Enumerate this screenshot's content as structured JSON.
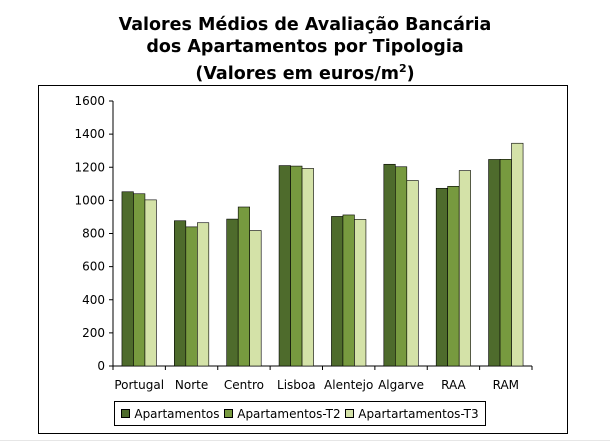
{
  "chart_data": {
    "type": "bar",
    "title_lines": [
      "Valores Médios de Avaliação Bancária",
      "dos Apartamentos por Tipologia",
      "(Valores em euros/m",
      "2",
      ")"
    ],
    "categories": [
      "Portugal",
      "Norte",
      "Centro",
      "Lisboa",
      "Alentejo",
      "Algarve",
      "RAA",
      "RAM"
    ],
    "series": [
      {
        "name": "Apartamentos",
        "color": "#4e6b2c",
        "values": [
          1052,
          877,
          887,
          1210,
          903,
          1218,
          1073,
          1247
        ]
      },
      {
        "name": "Apartamentos-T2",
        "color": "#779a3f",
        "values": [
          1040,
          840,
          960,
          1207,
          912,
          1203,
          1085,
          1248
        ]
      },
      {
        "name": "Apartartamentos-T3",
        "color": "#d4e2a8",
        "values": [
          1003,
          865,
          818,
          1193,
          885,
          1120,
          1180,
          1345
        ]
      }
    ],
    "yticks": [
      "0",
      "200",
      "400",
      "600",
      "800",
      "1000",
      "1200",
      "1400",
      "1600"
    ],
    "ylim": [
      0,
      1600
    ],
    "grid": false,
    "legend_position": "bottom"
  }
}
